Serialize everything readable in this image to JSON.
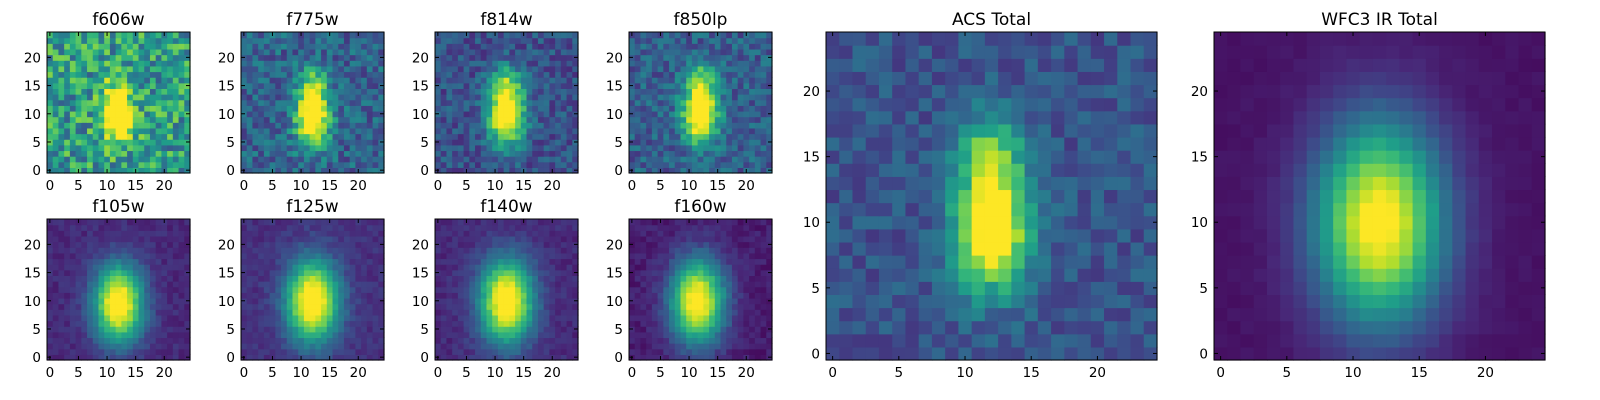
{
  "figure": {
    "grid_size": 25,
    "tick_values": [
      0,
      5,
      10,
      15,
      20
    ],
    "colormap": "viridis",
    "colormap_stops": [
      "#440154",
      "#482878",
      "#3e4989",
      "#31688e",
      "#26828e",
      "#1f9e89",
      "#35b779",
      "#6ece58",
      "#b5de2b",
      "#fde725"
    ]
  },
  "chart_data": [
    {
      "type": "heatmap",
      "title": "f606w",
      "center": [
        12,
        9.5
      ],
      "sigma": [
        1.8,
        2.8
      ],
      "peak": 0.95,
      "noise": 0.26,
      "background": 0.55,
      "plume": 0.25,
      "seed": 11
    },
    {
      "type": "heatmap",
      "title": "f775w",
      "center": [
        12,
        9.5
      ],
      "sigma": [
        2.0,
        3.5
      ],
      "peak": 0.95,
      "noise": 0.16,
      "background": 0.32,
      "plume": 0.35,
      "seed": 23
    },
    {
      "type": "heatmap",
      "title": "f814w",
      "center": [
        12,
        10
      ],
      "sigma": [
        2.2,
        3.8
      ],
      "peak": 0.95,
      "noise": 0.13,
      "background": 0.25,
      "plume": 0.3,
      "seed": 37
    },
    {
      "type": "heatmap",
      "title": "f850lp",
      "center": [
        12,
        10
      ],
      "sigma": [
        2.1,
        3.5
      ],
      "peak": 0.95,
      "noise": 0.14,
      "background": 0.3,
      "plume": 0.4,
      "seed": 41
    },
    {
      "type": "heatmap",
      "title": "f105w",
      "center": [
        12,
        9.5
      ],
      "sigma": [
        3.0,
        4.8
      ],
      "peak": 1.0,
      "noise": 0.05,
      "background": 0.12,
      "plume": 0.0,
      "seed": 53
    },
    {
      "type": "heatmap",
      "title": "f125w",
      "center": [
        12,
        10
      ],
      "sigma": [
        3.2,
        5.0
      ],
      "peak": 1.0,
      "noise": 0.05,
      "background": 0.14,
      "plume": 0.0,
      "seed": 61
    },
    {
      "type": "heatmap",
      "title": "f140w",
      "center": [
        12,
        10
      ],
      "sigma": [
        3.3,
        5.2
      ],
      "peak": 1.0,
      "noise": 0.05,
      "background": 0.12,
      "plume": 0.0,
      "seed": 71
    },
    {
      "type": "heatmap",
      "title": "f160w",
      "center": [
        11.5,
        10
      ],
      "sigma": [
        3.3,
        5.2
      ],
      "peak": 1.0,
      "noise": 0.05,
      "background": 0.08,
      "plume": 0.0,
      "seed": 83
    },
    {
      "type": "heatmap",
      "title": "ACS Total",
      "center": [
        12,
        9.5
      ],
      "sigma": [
        1.9,
        3.2
      ],
      "peak": 0.95,
      "noise": 0.1,
      "background": 0.26,
      "plume": 0.42,
      "seed": 97
    },
    {
      "type": "heatmap",
      "title": "WFC3 IR Total",
      "center": [
        12,
        10
      ],
      "sigma": [
        3.4,
        5.4
      ],
      "peak": 1.0,
      "noise": 0.015,
      "background": 0.05,
      "plume": 0.0,
      "seed": 101
    }
  ]
}
